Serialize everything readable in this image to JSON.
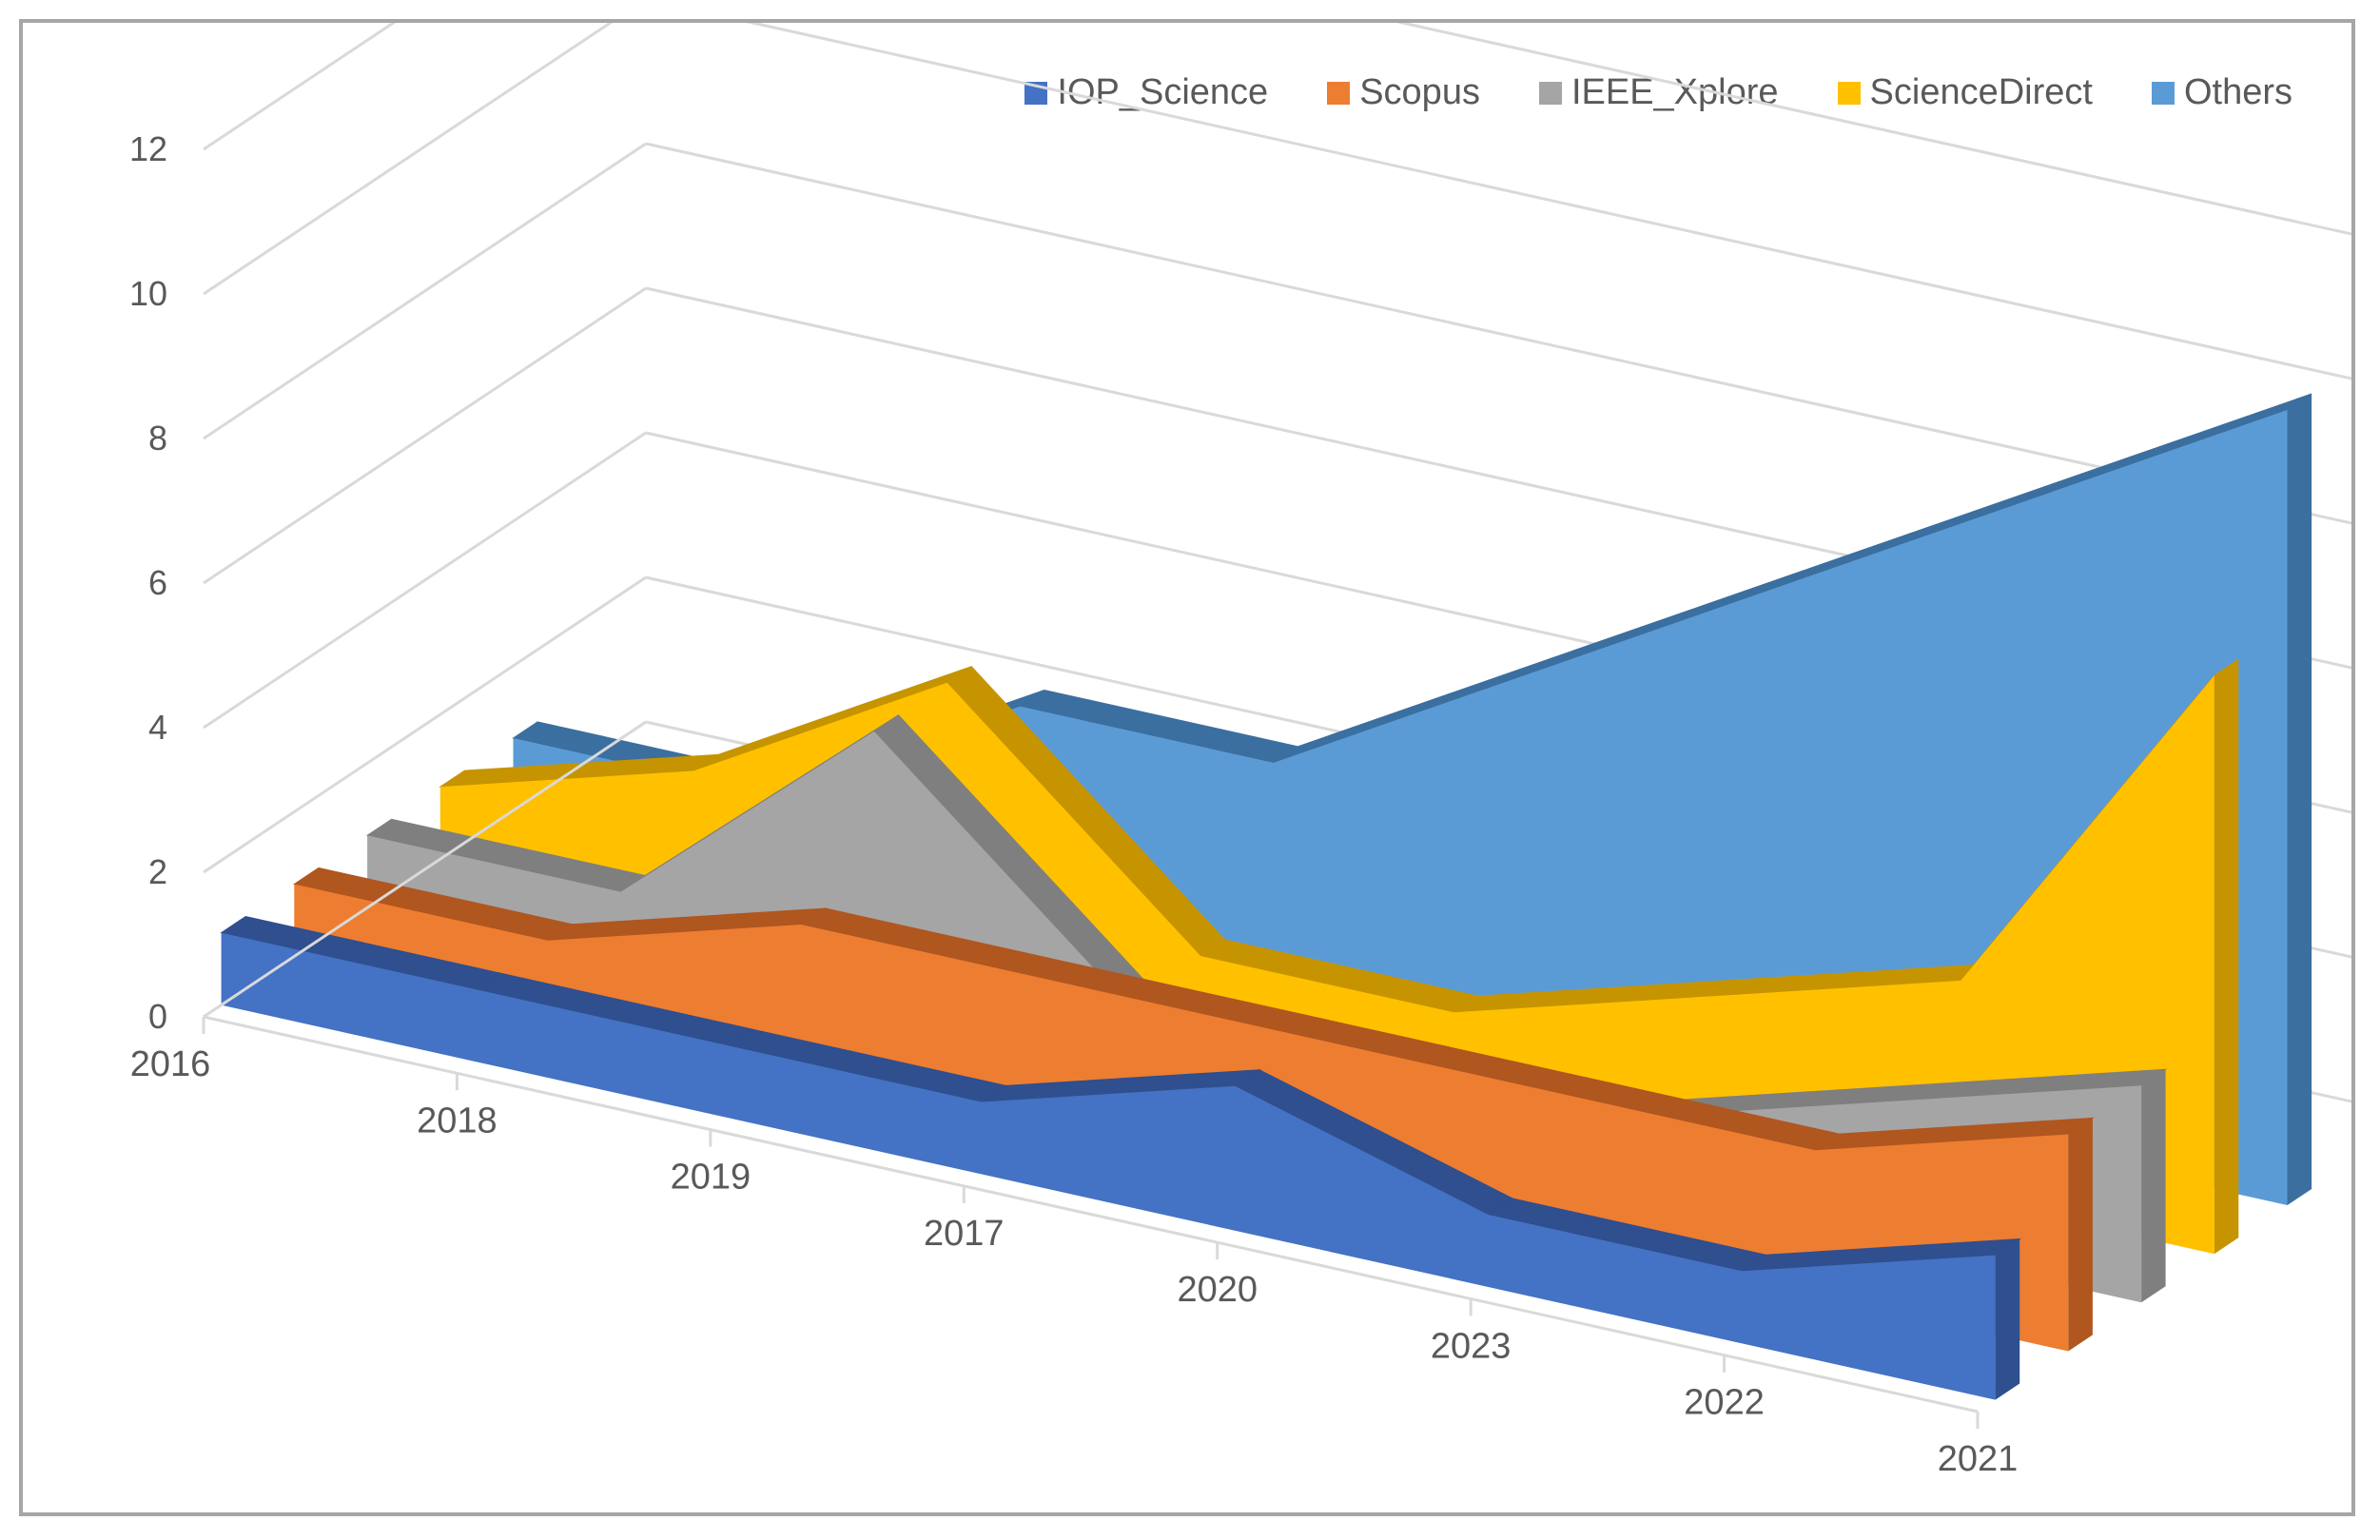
{
  "chart_data": {
    "type": "area",
    "style": "3d-area",
    "categories": [
      "2016",
      "2018",
      "2019",
      "2017",
      "2020",
      "2023",
      "2022",
      "2021"
    ],
    "ylim": [
      0,
      12
    ],
    "yticks": [
      "0",
      "2",
      "4",
      "6",
      "8",
      "10",
      "12"
    ],
    "legend_position": "top-right",
    "series": [
      {
        "name": "IOP_Science",
        "color": "#4472c4",
        "side": "#2f4f8f",
        "values": [
          1,
          1,
          1,
          1,
          2,
          1,
          1,
          2
        ]
      },
      {
        "name": "Scopus",
        "color": "#ed7d31",
        "side": "#b0561f",
        "values": [
          1,
          1,
          2,
          2,
          2,
          2,
          2,
          3
        ]
      },
      {
        "name": "IEEE_Xplore",
        "color": "#a5a5a5",
        "side": "#7f7f7f",
        "values": [
          1,
          1,
          4,
          1,
          1,
          1,
          2,
          3
        ]
      },
      {
        "name": "ScienceDirect",
        "color": "#ffc000",
        "side": "#c59400",
        "values": [
          1,
          2,
          4,
          1,
          1,
          2,
          3,
          8
        ]
      },
      {
        "name": "Others",
        "color": "#5b9bd5",
        "side": "#3b6f9f",
        "values": [
          1,
          1,
          3,
          3,
          5,
          7,
          9,
          11
        ]
      }
    ]
  }
}
